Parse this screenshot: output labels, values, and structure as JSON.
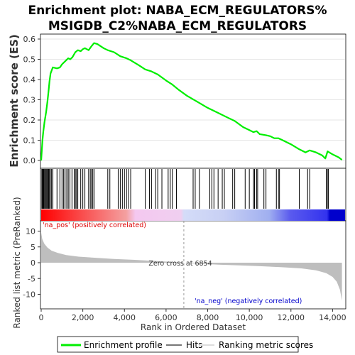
{
  "chart_data": {
    "type": "line",
    "title_line1": "Enrichment plot: NABA_ECM_REGULATORS%",
    "title_line2": "MSIGDB_C2%NABA_ECM_REGULATORS",
    "es_ylabel": "Enrichment score (ES)",
    "metric_ylabel": "Ranked list metric (PreRanked)",
    "xlabel": "Rank in Ordered Dataset",
    "es_ylim": [
      0,
      0.6
    ],
    "es_yticks": [
      "0.0",
      "0.1",
      "0.2",
      "0.3",
      "0.4",
      "0.5",
      "0.6"
    ],
    "es_ytick_values": [
      0,
      0.1,
      0.2,
      0.3,
      0.4,
      0.5,
      0.6
    ],
    "metric_ylim": [
      -13,
      13
    ],
    "metric_yticks": [
      "10",
      "5",
      "0",
      "-5",
      "-10"
    ],
    "metric_ytick_values": [
      10,
      5,
      0,
      -5,
      -10
    ],
    "xlim": [
      0,
      14600
    ],
    "xticks": [
      "0",
      "2,000",
      "4,000",
      "6,000",
      "8,000",
      "10,000",
      "12,000",
      "14,000"
    ],
    "xtick_values": [
      0,
      2000,
      4000,
      6000,
      8000,
      10000,
      12000,
      14000
    ],
    "zero_cross_label": "Zero cross at 6854",
    "zero_cross": 6854,
    "pos_label": "'na_pos' (positively correlated)",
    "neg_label": "'na_neg' (negatively correlated)",
    "legend": [
      "Enrichment profile",
      "Hits",
      "Ranking metric scores"
    ],
    "colors": {
      "es_line": "#00ee00",
      "hits": "#000000",
      "metric_fill": "#bebebe",
      "pos_text": "#dd0000",
      "neg_text": "#0000cc"
    },
    "hits": [
      30,
      60,
      90,
      120,
      160,
      200,
      240,
      280,
      320,
      360,
      400,
      440,
      500,
      560,
      760,
      900,
      1000,
      1080,
      1150,
      1230,
      1300,
      1380,
      1480,
      1600,
      1640,
      1700,
      1760,
      1900,
      2000,
      2100,
      2280,
      2360,
      2420,
      2480,
      2540,
      3200,
      3300,
      3700,
      3800,
      3900,
      4000,
      4100,
      4200,
      4300,
      5000,
      5200,
      5300,
      5500,
      5600,
      5800,
      6100,
      6200,
      6300,
      6500,
      7300,
      7400,
      7600,
      8100,
      8200,
      8300,
      8500,
      8700,
      8800,
      9200,
      9300,
      9800,
      10000,
      10200,
      10250,
      10350,
      10400,
      10700,
      10800,
      11300,
      11400,
      11450,
      12400,
      12800,
      12900,
      13700,
      13750,
      13800
    ],
    "es_points": [
      [
        0,
        0
      ],
      [
        30,
        0.05
      ],
      [
        60,
        0.1
      ],
      [
        100,
        0.14
      ],
      [
        160,
        0.19
      ],
      [
        240,
        0.24
      ],
      [
        300,
        0.29
      ],
      [
        350,
        0.34
      ],
      [
        400,
        0.39
      ],
      [
        450,
        0.43
      ],
      [
        560,
        0.46
      ],
      [
        760,
        0.455
      ],
      [
        900,
        0.46
      ],
      [
        1000,
        0.475
      ],
      [
        1150,
        0.49
      ],
      [
        1300,
        0.505
      ],
      [
        1400,
        0.5
      ],
      [
        1500,
        0.51
      ],
      [
        1640,
        0.535
      ],
      [
        1760,
        0.545
      ],
      [
        1900,
        0.54
      ],
      [
        2000,
        0.55
      ],
      [
        2100,
        0.555
      ],
      [
        2280,
        0.545
      ],
      [
        2420,
        0.565
      ],
      [
        2540,
        0.58
      ],
      [
        2700,
        0.575
      ],
      [
        3000,
        0.555
      ],
      [
        3200,
        0.545
      ],
      [
        3500,
        0.535
      ],
      [
        3800,
        0.515
      ],
      [
        4100,
        0.505
      ],
      [
        4300,
        0.495
      ],
      [
        4700,
        0.47
      ],
      [
        5000,
        0.45
      ],
      [
        5300,
        0.44
      ],
      [
        5600,
        0.425
      ],
      [
        6000,
        0.395
      ],
      [
        6300,
        0.375
      ],
      [
        6600,
        0.35
      ],
      [
        7000,
        0.32
      ],
      [
        7500,
        0.29
      ],
      [
        8000,
        0.26
      ],
      [
        8500,
        0.235
      ],
      [
        9000,
        0.21
      ],
      [
        9300,
        0.195
      ],
      [
        9700,
        0.165
      ],
      [
        10000,
        0.15
      ],
      [
        10200,
        0.14
      ],
      [
        10350,
        0.145
      ],
      [
        10500,
        0.13
      ],
      [
        10800,
        0.125
      ],
      [
        11000,
        0.12
      ],
      [
        11200,
        0.11
      ],
      [
        11400,
        0.11
      ],
      [
        11600,
        0.1
      ],
      [
        12000,
        0.08
      ],
      [
        12400,
        0.055
      ],
      [
        12700,
        0.04
      ],
      [
        12900,
        0.05
      ],
      [
        13200,
        0.04
      ],
      [
        13500,
        0.025
      ],
      [
        13650,
        0.01
      ],
      [
        13700,
        0.025
      ],
      [
        13760,
        0.045
      ],
      [
        14000,
        0.03
      ],
      [
        14300,
        0.015
      ],
      [
        14450,
        0.003
      ]
    ],
    "metric_points": [
      [
        0,
        9.5
      ],
      [
        50,
        7.5
      ],
      [
        150,
        6
      ],
      [
        300,
        4.8
      ],
      [
        500,
        3.8
      ],
      [
        800,
        3.1
      ],
      [
        1200,
        2.4
      ],
      [
        1800,
        1.9
      ],
      [
        2500,
        1.6
      ],
      [
        3500,
        1.2
      ],
      [
        4500,
        0.9
      ],
      [
        5500,
        0.55
      ],
      [
        6300,
        0.25
      ],
      [
        6854,
        0
      ],
      [
        7500,
        -0.3
      ],
      [
        8500,
        -0.6
      ],
      [
        9500,
        -0.85
      ],
      [
        10500,
        -1.1
      ],
      [
        11500,
        -1.4
      ],
      [
        12500,
        -1.8
      ],
      [
        13200,
        -2.4
      ],
      [
        13700,
        -3.3
      ],
      [
        14000,
        -4.5
      ],
      [
        14200,
        -6
      ],
      [
        14350,
        -8.5
      ],
      [
        14450,
        -12
      ]
    ],
    "gradient_stops": [
      [
        0,
        "#ff0000"
      ],
      [
        0.28,
        "#f4a0a0"
      ],
      [
        0.31,
        "#f4c8f0"
      ],
      [
        0.46,
        "#f0cff0"
      ],
      [
        0.47,
        "#d4dcf8"
      ],
      [
        0.6,
        "#c8d0f4"
      ],
      [
        0.75,
        "#a0aff0"
      ],
      [
        0.82,
        "#5a5aee"
      ],
      [
        0.94,
        "#3333ee"
      ],
      [
        0.95,
        "#0000cc"
      ],
      [
        1,
        "#0000cc"
      ]
    ]
  }
}
